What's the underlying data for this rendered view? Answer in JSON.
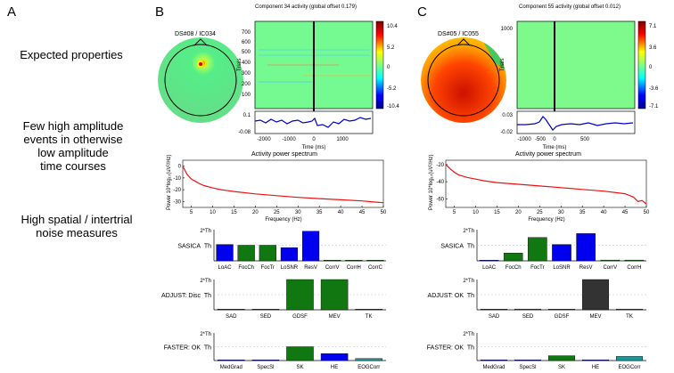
{
  "panel_labels": [
    "A",
    "B",
    "C"
  ],
  "left_column": {
    "row1": [
      "Expected properties"
    ],
    "row2": [
      "Few high amplitude",
      "events in otherwise",
      "low amplitude",
      "time courses"
    ],
    "row3": [
      "High spatial / intertrial",
      "noise measures"
    ]
  },
  "panels": [
    {
      "id": "B",
      "topo_title": "DS#08 / IC034",
      "erp_title": "Component 34 activity (global offset 0.179)",
      "trial_ticks": [
        "700",
        "600",
        "500",
        "400",
        "300",
        "200",
        "100"
      ],
      "trials_label": "Trials",
      "colorbar_ticks": [
        "10.4",
        "5.2",
        "0",
        "-5.2",
        "-10.4"
      ],
      "trace_ticks": [
        "0.1",
        "-0.08"
      ],
      "time_ticks": [
        "-2000",
        "-1000",
        "0",
        "1000"
      ],
      "time_label": "Time (ms)",
      "spectrum_title": "Activity power spectrum",
      "power_label": "Power 10*log₁₀(uV²/Hz)",
      "freq_label": "Frequency (Hz)",
      "sasica": {
        "title": "SASICA",
        "categories": [
          "LoAC",
          "FocCh",
          "FocTr",
          "LoSNR",
          "ResV",
          "CorrV",
          "CorrH",
          "CorrC"
        ],
        "colors": [
          "#0000ee",
          "#117711",
          "#117711",
          "#0000ee",
          "#0000ee",
          "#117711",
          "#117711",
          "#117711"
        ]
      },
      "adjust": {
        "title": "ADJUST: Disc",
        "categories": [
          "SAD",
          "SED",
          "GDSF",
          "MEV",
          "TK"
        ],
        "colors": [
          "#117711",
          "#117711",
          "#117711",
          "#117711",
          "#117711"
        ]
      },
      "faster": {
        "title": "FASTER: OK",
        "categories": [
          "MedGrad",
          "SpecSl",
          "SK",
          "HE",
          "EOGCorr"
        ],
        "colors": [
          "#0000ee",
          "#0000ee",
          "#117711",
          "#0000ee",
          "#1a9999"
        ]
      }
    },
    {
      "id": "C",
      "topo_title": "DS#05 / IC055",
      "erp_title": "Component 55 activity (global offset 0.012)",
      "trial_ticks": [
        "1000"
      ],
      "trials_label": "Trials",
      "colorbar_ticks": [
        "7.1",
        "3.6",
        "0",
        "-3.6",
        "-7.1"
      ],
      "trace_ticks": [
        "0.03",
        "-0.02"
      ],
      "time_ticks": [
        "-1000",
        "-500",
        "0",
        "500"
      ],
      "time_label": "Time (ms)",
      "spectrum_title": "Activity power spectrum",
      "power_label": "Power 10*log₁₀(uV²/Hz)",
      "freq_label": "Frequency (Hz)",
      "sasica": {
        "title": "SASICA",
        "categories": [
          "LoAC",
          "FocCh",
          "FocTr",
          "LoSNR",
          "ResV",
          "CorrV",
          "CorrH"
        ],
        "colors": [
          "#0000ee",
          "#117711",
          "#117711",
          "#0000ee",
          "#0000ee",
          "#117711",
          "#117711"
        ]
      },
      "adjust": {
        "title": "ADJUST: OK",
        "categories": [
          "SAD",
          "SED",
          "GDSF",
          "MEV",
          "TK"
        ],
        "colors": [
          "#117711",
          "#117711",
          "#117711",
          "#333333",
          "#117711"
        ]
      },
      "faster": {
        "title": "FASTER: OK",
        "categories": [
          "MedGrad",
          "SpecSl",
          "SK",
          "HE",
          "EOGCorr"
        ],
        "colors": [
          "#0000ee",
          "#0000ee",
          "#117711",
          "#0000ee",
          "#1a9999"
        ]
      }
    }
  ],
  "threshold_labels": {
    "top": "2*Th",
    "mid": "Th"
  },
  "chart_data": [
    {
      "type": "line",
      "panel": "B",
      "xlabel": "Frequency (Hz)",
      "ylabel": "Power 10*log₁₀(uV²/Hz)",
      "xlim": [
        3,
        50
      ],
      "ylim": [
        -35,
        5
      ],
      "x_ticks": [
        5,
        10,
        15,
        20,
        25,
        30,
        35,
        40,
        45,
        50
      ],
      "y_ticks": [
        0,
        -10,
        -20,
        -30
      ],
      "x": [
        3,
        4,
        5,
        6,
        7,
        8,
        10,
        12,
        15,
        20,
        25,
        30,
        35,
        40,
        45,
        48,
        50
      ],
      "y": [
        0,
        -7,
        -11,
        -13,
        -15,
        -16.5,
        -18.5,
        -20,
        -21.5,
        -23.5,
        -25,
        -26.5,
        -27.5,
        -28.5,
        -29.5,
        -30.5,
        -31
      ],
      "color": "#ee1111"
    },
    {
      "type": "line",
      "panel": "C",
      "xlabel": "Frequency (Hz)",
      "ylabel": "Power 10*log₁₀(uV²/Hz)",
      "xlim": [
        3,
        50
      ],
      "ylim": [
        -70,
        -15
      ],
      "x_ticks": [
        5,
        10,
        15,
        20,
        25,
        30,
        35,
        40,
        45,
        50
      ],
      "y_ticks": [
        -20,
        -40,
        -60
      ],
      "x": [
        3,
        4,
        5,
        6,
        8,
        10,
        12,
        15,
        20,
        25,
        30,
        35,
        40,
        45,
        47,
        48,
        49,
        50
      ],
      "y": [
        -20,
        -25,
        -29,
        -32,
        -35,
        -37,
        -39,
        -41,
        -43,
        -45,
        -47,
        -49,
        -51,
        -54,
        -58,
        -63,
        -62,
        -66
      ],
      "color": "#ee1111"
    },
    {
      "type": "bar",
      "panel": "B",
      "group": "sasica",
      "unit": "threshold (Th)",
      "categories": [
        "LoAC",
        "FocCh",
        "FocTr",
        "LoSNR",
        "ResV",
        "CorrV",
        "CorrH",
        "CorrC"
      ],
      "values": [
        1.05,
        1.0,
        1.0,
        0.85,
        1.9,
        0.0,
        0.0,
        0.0
      ],
      "ylim": [
        0,
        2
      ]
    },
    {
      "type": "bar",
      "panel": "B",
      "group": "adjust",
      "unit": "threshold (Th)",
      "categories": [
        "SAD",
        "SED",
        "GDSF",
        "MEV",
        "TK"
      ],
      "values": [
        0.0,
        0.0,
        2.0,
        2.0,
        0.0
      ],
      "ylim": [
        0,
        2
      ]
    },
    {
      "type": "bar",
      "panel": "B",
      "group": "faster",
      "unit": "threshold (Th)",
      "categories": [
        "MedGrad",
        "SpecSl",
        "SK",
        "HE",
        "EOGCorr"
      ],
      "values": [
        0.0,
        0.0,
        1.0,
        0.5,
        0.15
      ],
      "ylim": [
        0,
        2
      ]
    },
    {
      "type": "bar",
      "panel": "C",
      "group": "sasica",
      "unit": "threshold (Th)",
      "categories": [
        "LoAC",
        "FocCh",
        "FocTr",
        "LoSNR",
        "ResV",
        "CorrV",
        "CorrH"
      ],
      "values": [
        0.0,
        0.5,
        1.5,
        1.05,
        1.75,
        0.05,
        0.05
      ],
      "ylim": [
        0,
        2
      ]
    },
    {
      "type": "bar",
      "panel": "C",
      "group": "adjust",
      "unit": "threshold (Th)",
      "categories": [
        "SAD",
        "SED",
        "GDSF",
        "MEV",
        "TK"
      ],
      "values": [
        0.0,
        0.05,
        0.0,
        2.0,
        0.05
      ],
      "ylim": [
        0,
        2
      ]
    },
    {
      "type": "bar",
      "panel": "C",
      "group": "faster",
      "unit": "threshold (Th)",
      "categories": [
        "MedGrad",
        "SpecSl",
        "SK",
        "HE",
        "EOGCorr"
      ],
      "values": [
        0.05,
        0.0,
        0.35,
        0.0,
        0.3
      ],
      "ylim": [
        0,
        2
      ]
    }
  ]
}
